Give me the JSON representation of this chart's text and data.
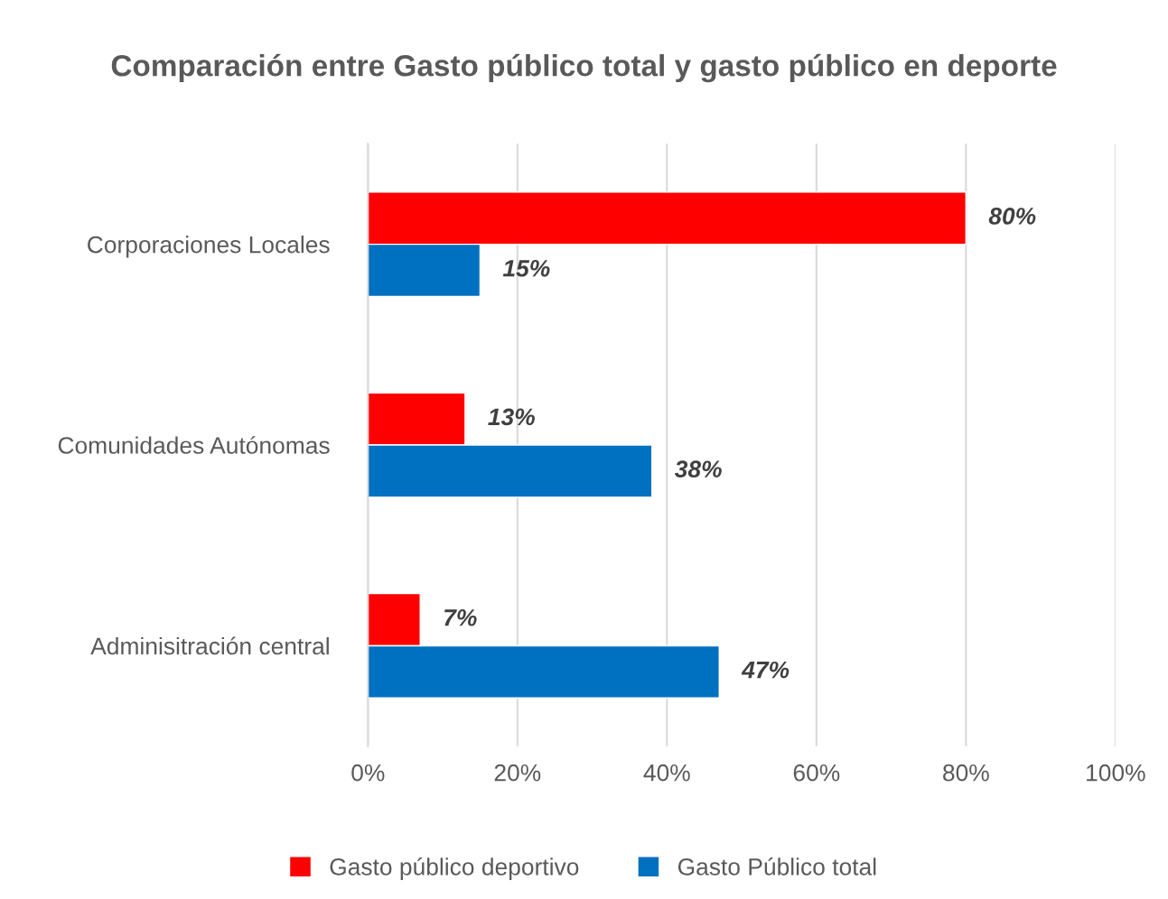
{
  "chart_data": {
    "type": "bar",
    "orientation": "horizontal",
    "title": "Comparación entre Gasto público total y gasto público en deporte",
    "categories": [
      "Corporaciones Locales",
      "Comunidades Autónomas",
      "Adminisitración central"
    ],
    "series": [
      {
        "name": "Gasto público deportivo",
        "color": "#ff0000",
        "values": [
          80,
          13,
          7
        ],
        "value_labels": [
          "80%",
          "13%",
          "7%"
        ]
      },
      {
        "name": "Gasto Público total",
        "color": "#0070c0",
        "values": [
          15,
          38,
          47
        ],
        "value_labels": [
          "15%",
          "38%",
          "47%"
        ]
      }
    ],
    "xlim": [
      0,
      100
    ],
    "xticks": [
      {
        "value": 0,
        "label": "0%"
      },
      {
        "value": 20,
        "label": "20%"
      },
      {
        "value": 40,
        "label": "40%"
      },
      {
        "value": 60,
        "label": "60%"
      },
      {
        "value": 80,
        "label": "80%"
      },
      {
        "value": 100,
        "label": "100%"
      }
    ],
    "grid": "x",
    "legend": "bottom"
  }
}
